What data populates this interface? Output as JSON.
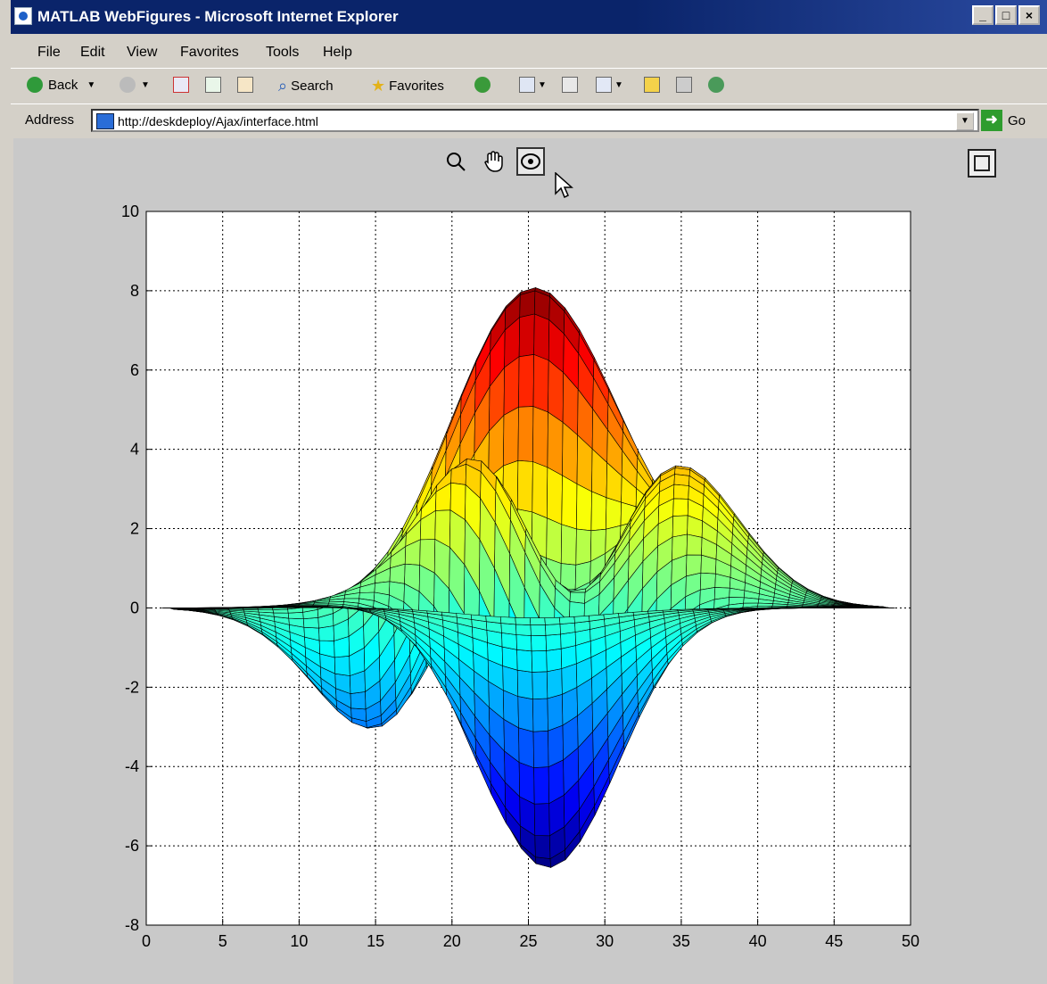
{
  "window": {
    "title": "MATLAB WebFigures - Microsoft Internet Explorer",
    "controls": {
      "minimize": "_",
      "maximize": "□",
      "close": "×"
    }
  },
  "menu": [
    "File",
    "Edit",
    "View",
    "Favorites",
    "Tools",
    "Help"
  ],
  "toolbar": {
    "back_label": "Back",
    "search_label": "Search",
    "favorites_label": "Favorites"
  },
  "address": {
    "label": "Address",
    "url": "http://deskdeploy/Ajax/interface.html",
    "go_label": "Go"
  },
  "figure_tools": [
    "zoom-icon",
    "pan-hand-icon",
    "rotate-3d-icon",
    "fullscreen-icon"
  ],
  "chart_data": {
    "type": "surface",
    "description_hint": "peaks surface",
    "xlim": [
      0,
      50
    ],
    "ylim": [
      -8,
      10
    ],
    "xticks": [
      0,
      5,
      10,
      15,
      20,
      25,
      30,
      35,
      40,
      45,
      50
    ],
    "yticks": [
      -8,
      -6,
      -4,
      -2,
      0,
      2,
      4,
      6,
      8,
      10
    ],
    "grid": true,
    "colormap": "jet",
    "z_range": [
      -6.55,
      8.1
    ],
    "grid_size": 49
  }
}
